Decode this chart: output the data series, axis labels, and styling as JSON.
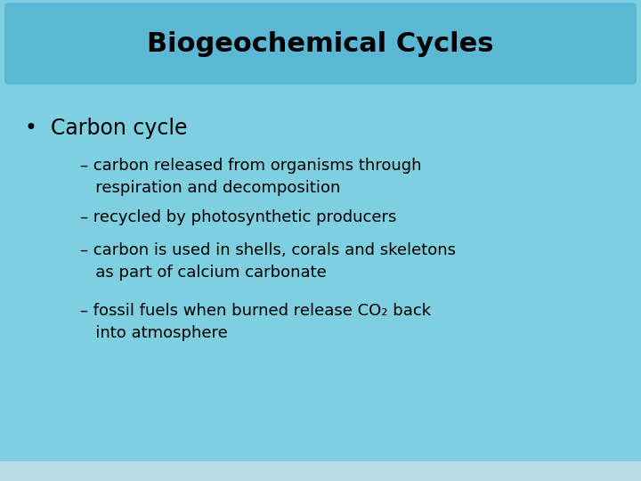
{
  "title": "Biogeochemical Cycles",
  "title_bg_color": "#5BB8D4",
  "slide_bg_color": "#7ECFE0",
  "bottom_bar_color": "#B8DDE8",
  "title_fontsize": 22,
  "title_font_weight": "bold",
  "bullet_text": "Carbon cycle",
  "bullet_fontsize": 17,
  "sub_bullets_line1": [
    "– carbon released from organisms through",
    "– recycled by photosynthetic producers",
    "– carbon is used in shells, corals and skeletons",
    "– fossil fuels when burned release CO₂ back"
  ],
  "sub_bullets_line2": [
    "   respiration and decomposition",
    "",
    "   as part of calcium carbonate",
    "   into atmosphere"
  ],
  "sub_bullet_fontsize": 13,
  "text_color": "#000000"
}
